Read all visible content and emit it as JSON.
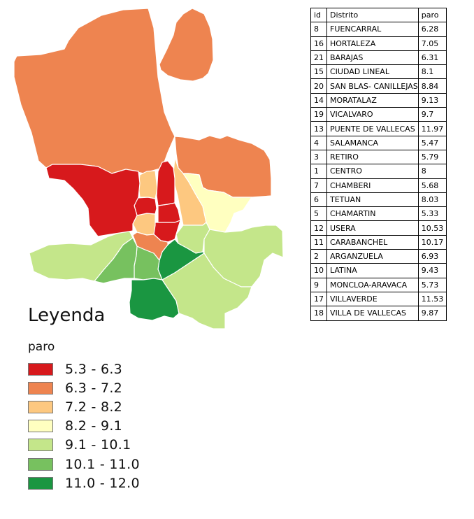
{
  "legend": {
    "title": "Leyenda",
    "field": "paro",
    "classes": [
      {
        "label": "5.3 - 6.3",
        "color": "#d7191c"
      },
      {
        "label": "6.3 - 7.2",
        "color": "#ee8450"
      },
      {
        "label": "7.2 - 8.2",
        "color": "#fdc880"
      },
      {
        "label": "8.2 - 9.1",
        "color": "#ffffc0"
      },
      {
        "label": "9.1 - 10.1",
        "color": "#c4e68a"
      },
      {
        "label": "10.1 - 11.0",
        "color": "#77c15f"
      },
      {
        "label": "11.0 - 12.0",
        "color": "#1a9641"
      }
    ]
  },
  "table": {
    "headers": [
      "id",
      "Distrito",
      "paro"
    ],
    "rows": [
      [
        "8",
        "FUENCARRAL",
        "6.28"
      ],
      [
        "16",
        "HORTALEZA",
        "7.05"
      ],
      [
        "21",
        "BARAJAS",
        "6.31"
      ],
      [
        "15",
        "CIUDAD LINEAL",
        "8.1"
      ],
      [
        "20",
        "SAN BLAS- CANILLEJAS",
        "8.84"
      ],
      [
        "14",
        "MORATALAZ",
        "9.13"
      ],
      [
        "19",
        "VICALVARO",
        "9.7"
      ],
      [
        "13",
        "PUENTE DE VALLECAS",
        "11.97"
      ],
      [
        "4",
        "SALAMANCA",
        "5.47"
      ],
      [
        "3",
        "RETIRO",
        "5.79"
      ],
      [
        "1",
        "CENTRO",
        "8"
      ],
      [
        "7",
        "CHAMBERI",
        "5.68"
      ],
      [
        "6",
        "TETUAN",
        "8.03"
      ],
      [
        "5",
        "CHAMARTIN",
        "5.33"
      ],
      [
        "12",
        "USERA",
        "10.53"
      ],
      [
        "11",
        "CARABANCHEL",
        "10.17"
      ],
      [
        "2",
        "ARGANZUELA",
        "6.93"
      ],
      [
        "10",
        "LATINA",
        "9.43"
      ],
      [
        "9",
        "MONCLOA-ARAVACA",
        "5.73"
      ],
      [
        "17",
        "VILLAVERDE",
        "11.53"
      ],
      [
        "18",
        "VILLA DE VALLECAS",
        "9.87"
      ]
    ]
  },
  "map": {
    "districts": [
      {
        "name": "FUENCARRAL",
        "color": "#ee8450"
      },
      {
        "name": "HORTALEZA",
        "color": "#ee8450"
      },
      {
        "name": "BARAJAS",
        "color": "#ee8450"
      },
      {
        "name": "CIUDAD LINEAL",
        "color": "#fdc880"
      },
      {
        "name": "SAN BLAS- CANILLEJAS",
        "color": "#ffffc0"
      },
      {
        "name": "MORATALAZ",
        "color": "#c4e68a"
      },
      {
        "name": "VICALVARO",
        "color": "#c4e68a"
      },
      {
        "name": "PUENTE DE VALLECAS",
        "color": "#1a9641"
      },
      {
        "name": "SALAMANCA",
        "color": "#d7191c"
      },
      {
        "name": "RETIRO",
        "color": "#d7191c"
      },
      {
        "name": "CENTRO",
        "color": "#fdc880"
      },
      {
        "name": "CHAMBERI",
        "color": "#d7191c"
      },
      {
        "name": "TETUAN",
        "color": "#fdc880"
      },
      {
        "name": "CHAMARTIN",
        "color": "#d7191c"
      },
      {
        "name": "USERA",
        "color": "#77c15f"
      },
      {
        "name": "CARABANCHEL",
        "color": "#77c15f"
      },
      {
        "name": "ARGANZUELA",
        "color": "#ee8450"
      },
      {
        "name": "LATINA",
        "color": "#c4e68a"
      },
      {
        "name": "MONCLOA-ARAVACA",
        "color": "#d7191c"
      },
      {
        "name": "VILLAVERDE",
        "color": "#1a9641"
      },
      {
        "name": "VILLA DE VALLECAS",
        "color": "#c4e68a"
      }
    ]
  }
}
